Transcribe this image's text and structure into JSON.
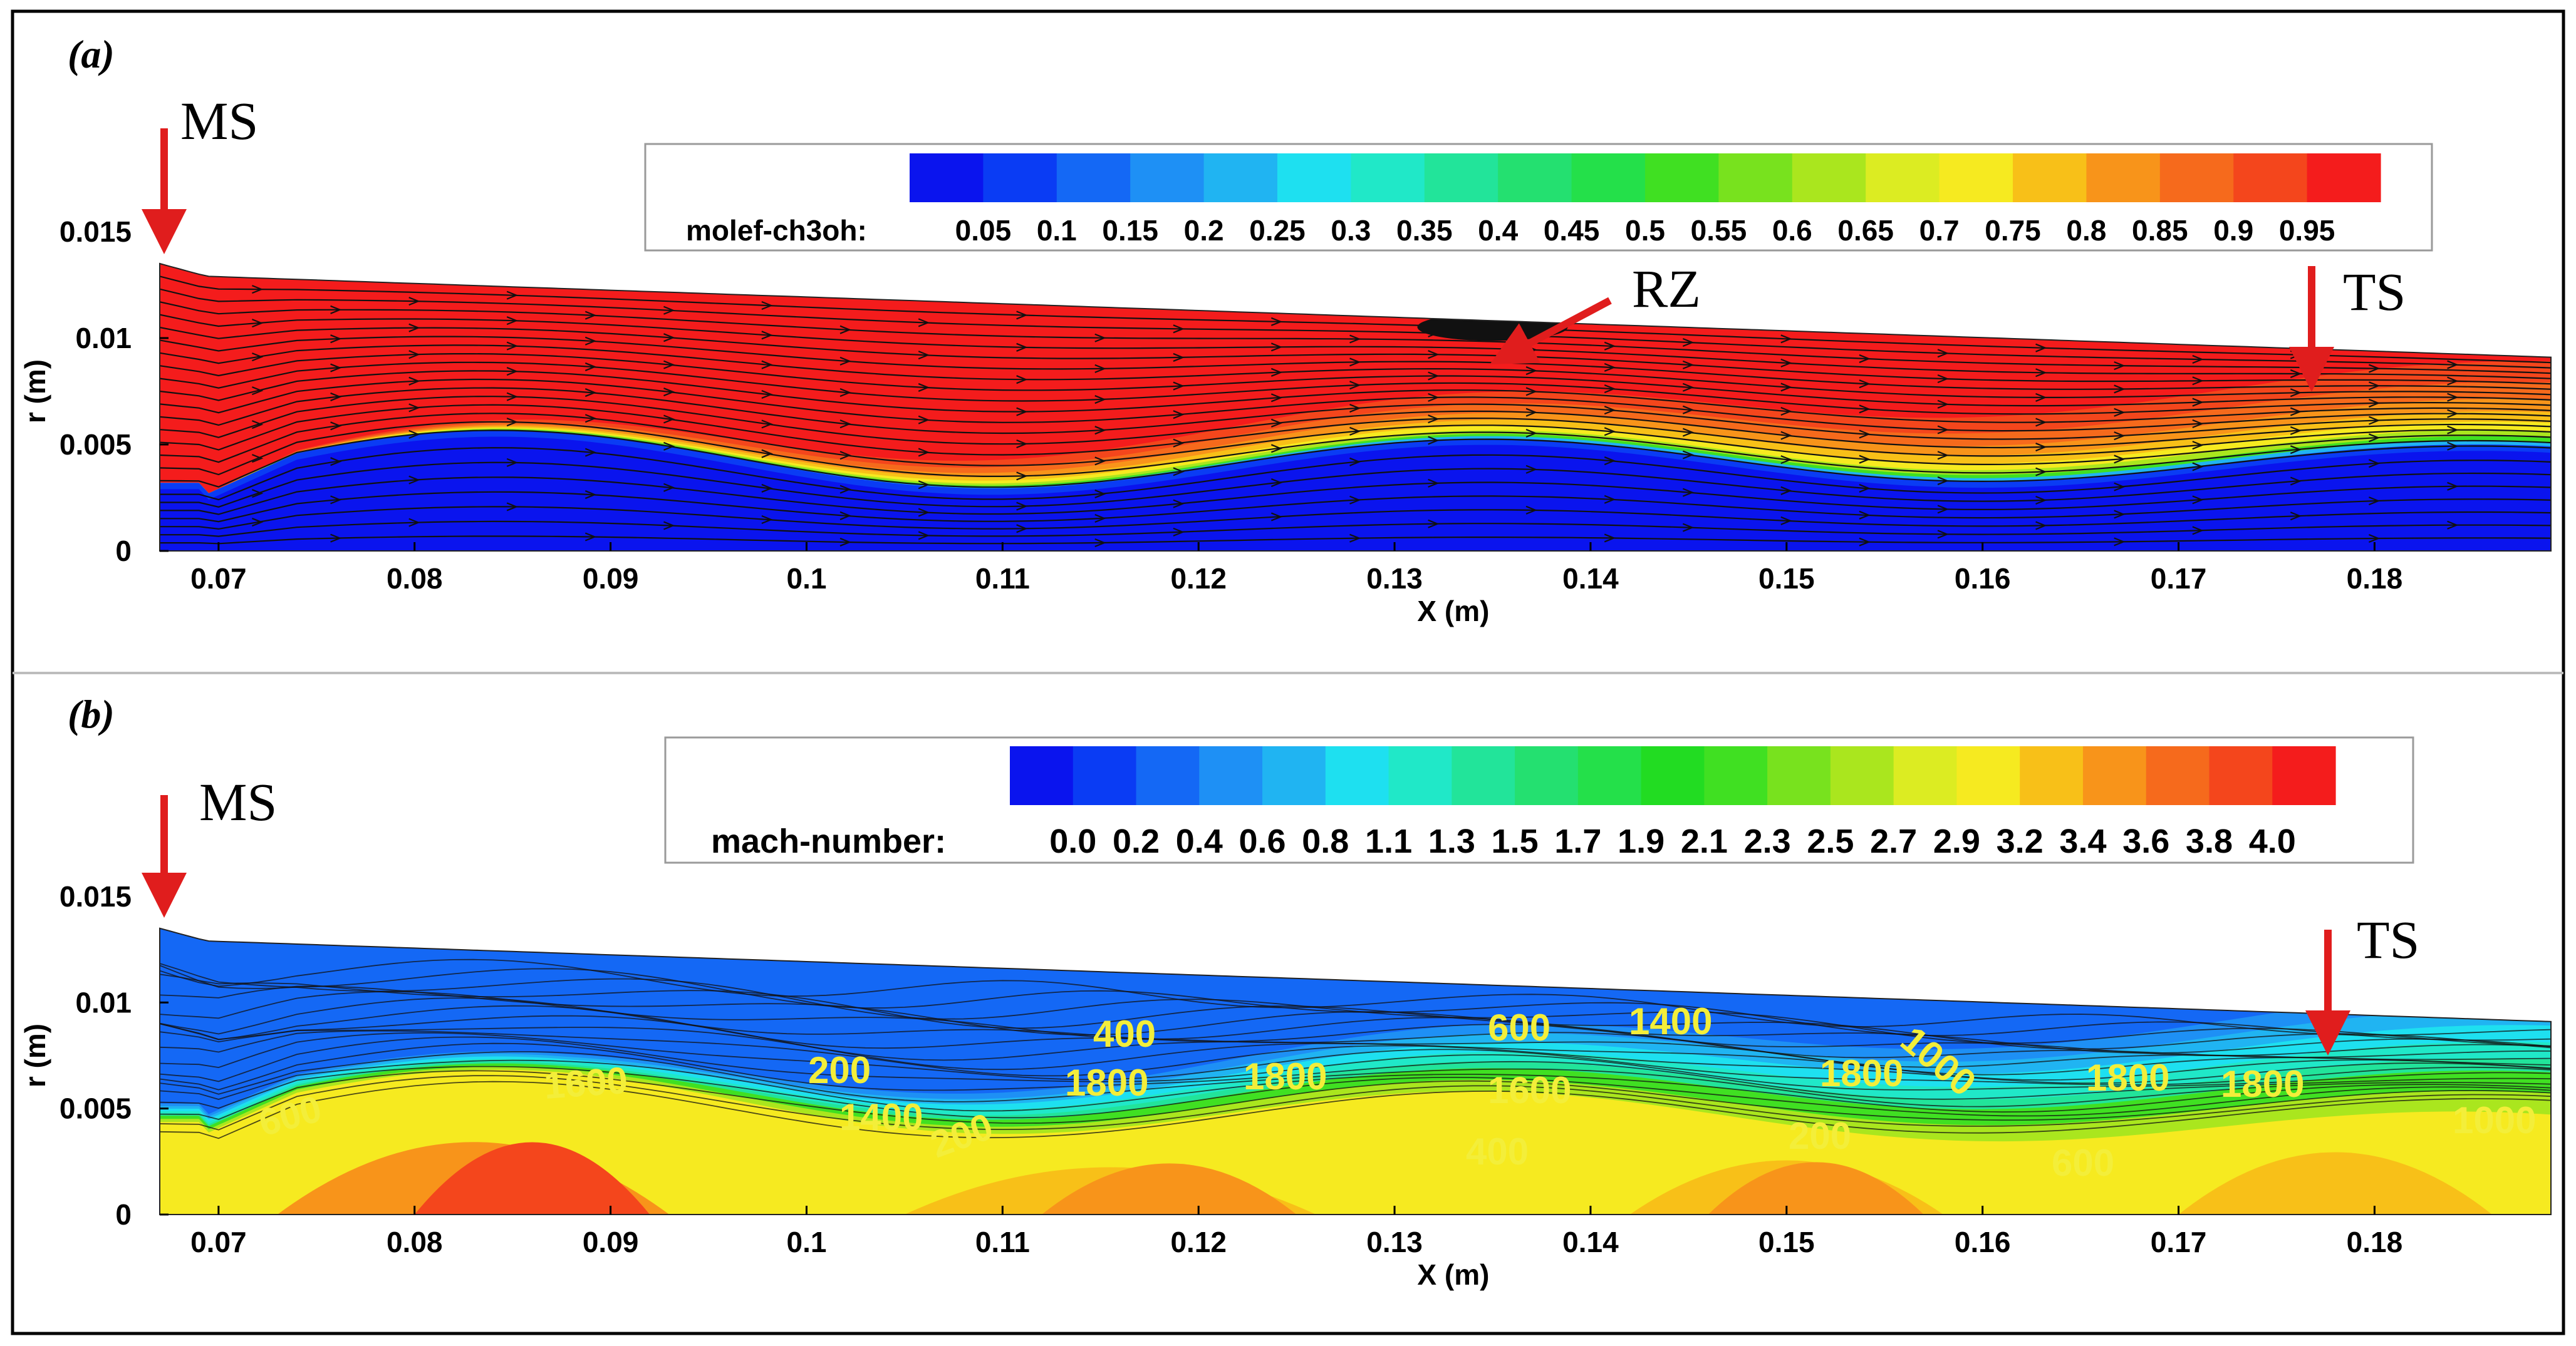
{
  "figure": {
    "panels": [
      {
        "label": "(a)",
        "annotations": [
          "MS",
          "RZ",
          "TS"
        ],
        "legend": {
          "title": "molef-ch3oh:",
          "ticks": [
            "0.05",
            "0.1",
            "0.15",
            "0.2",
            "0.25",
            "0.3",
            "0.35",
            "0.4",
            "0.45",
            "0.5",
            "0.55",
            "0.6",
            "0.65",
            "0.7",
            "0.75",
            "0.8",
            "0.85",
            "0.9",
            "0.95"
          ]
        },
        "x_ticks": [
          "0.07",
          "0.08",
          "0.09",
          "0.1",
          "0.11",
          "0.12",
          "0.13",
          "0.14",
          "0.15",
          "0.16",
          "0.17",
          "0.18"
        ],
        "y_ticks": [
          "0",
          "0.005",
          "0.01",
          "0.015"
        ],
        "xlabel": "X (m)",
        "ylabel": "r (m)"
      },
      {
        "label": "(b)",
        "annotations": [
          "MS",
          "TS"
        ],
        "legend": {
          "title": "mach-number:",
          "ticks": [
            "0.0",
            "0.2",
            "0.4",
            "0.6",
            "0.8",
            "1.1",
            "1.3",
            "1.5",
            "1.7",
            "1.9",
            "2.1",
            "2.3",
            "2.5",
            "2.7",
            "2.9",
            "3.2",
            "3.4",
            "3.6",
            "3.8",
            "4.0"
          ]
        },
        "contour_labels": [
          "600",
          "1600",
          "200",
          "400",
          "1800",
          "1400",
          "1800",
          "1600",
          "600",
          "1400",
          "1800",
          "1000",
          "1800",
          "1800",
          "200",
          "400",
          "200",
          "600",
          "1000"
        ],
        "x_ticks": [
          "0.07",
          "0.08",
          "0.09",
          "0.1",
          "0.11",
          "0.12",
          "0.13",
          "0.14",
          "0.15",
          "0.16",
          "0.17",
          "0.18"
        ],
        "y_ticks": [
          "0",
          "0.005",
          "0.01",
          "0.015"
        ],
        "xlabel": "X (m)",
        "ylabel": "r (m)"
      }
    ],
    "colors": {
      "arrow": "#e01d1d",
      "contour_label": "#f3ee3a",
      "palette": [
        "#0a14ee",
        "#0a3cf4",
        "#1468f5",
        "#1e90f5",
        "#20b4f2",
        "#1ee0f0",
        "#20e8c8",
        "#22e49a",
        "#24e070",
        "#24e04a",
        "#22dc22",
        "#40e022",
        "#78e21e",
        "#aae61e",
        "#dcec22",
        "#f6ea20",
        "#f8c018",
        "#f8941a",
        "#f66a1c",
        "#f4461c",
        "#f41c1c"
      ]
    },
    "chart_data": [
      {
        "type": "heatmap",
        "variable": "molef-ch3oh",
        "xlabel": "X (m)",
        "ylabel": "r (m)",
        "xlim": [
          0.067,
          0.189
        ],
        "ylim": [
          0,
          0.015
        ],
        "colorbar": [
          0.05,
          0.1,
          0.15,
          0.2,
          0.25,
          0.3,
          0.35,
          0.4,
          0.45,
          0.5,
          0.55,
          0.6,
          0.65,
          0.7,
          0.75,
          0.8,
          0.85,
          0.9,
          0.95
        ],
        "annotations": [
          "MS",
          "RZ",
          "TS"
        ]
      },
      {
        "type": "heatmap",
        "variable": "mach-number",
        "xlabel": "X (m)",
        "ylabel": "r (m)",
        "xlim": [
          0.067,
          0.189
        ],
        "ylim": [
          0,
          0.015
        ],
        "colorbar": [
          0.0,
          0.2,
          0.4,
          0.6,
          0.8,
          1.1,
          1.3,
          1.5,
          1.7,
          1.9,
          2.1,
          2.3,
          2.5,
          2.7,
          2.9,
          3.2,
          3.4,
          3.6,
          3.8,
          4.0
        ],
        "annotations": [
          "MS",
          "TS"
        ]
      }
    ]
  }
}
